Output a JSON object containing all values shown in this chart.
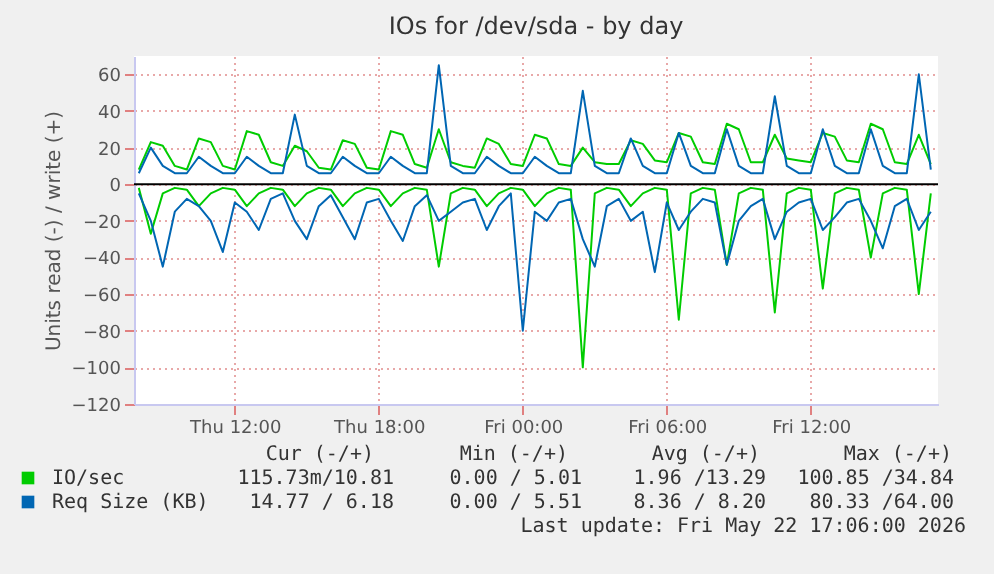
{
  "chart_data": {
    "type": "line",
    "title": "IOs for /dev/sda - by day",
    "ylabel": "Units read (-) / write (+)",
    "x": [
      "2026-05-21T08:00",
      "2026-05-21T08:30",
      "2026-05-21T09:00",
      "2026-05-21T09:30",
      "2026-05-21T10:00",
      "2026-05-21T10:30",
      "2026-05-21T11:00",
      "2026-05-21T11:30",
      "2026-05-21T12:00",
      "2026-05-21T12:30",
      "2026-05-21T13:00",
      "2026-05-21T13:30",
      "2026-05-21T14:00",
      "2026-05-21T14:30",
      "2026-05-21T15:00",
      "2026-05-21T15:30",
      "2026-05-21T16:00",
      "2026-05-21T16:30",
      "2026-05-21T17:00",
      "2026-05-21T17:30",
      "2026-05-21T18:00",
      "2026-05-21T18:30",
      "2026-05-21T19:00",
      "2026-05-21T19:30",
      "2026-05-21T20:00",
      "2026-05-21T20:30",
      "2026-05-21T21:00",
      "2026-05-21T21:30",
      "2026-05-21T22:00",
      "2026-05-21T22:30",
      "2026-05-21T23:00",
      "2026-05-21T23:30",
      "2026-05-22T00:00",
      "2026-05-22T00:30",
      "2026-05-22T01:00",
      "2026-05-22T01:30",
      "2026-05-22T02:00",
      "2026-05-22T02:30",
      "2026-05-22T03:00",
      "2026-05-22T03:30",
      "2026-05-22T04:00",
      "2026-05-22T04:30",
      "2026-05-22T05:00",
      "2026-05-22T05:30",
      "2026-05-22T06:00",
      "2026-05-22T06:30",
      "2026-05-22T07:00",
      "2026-05-22T07:30",
      "2026-05-22T08:00",
      "2026-05-22T08:30",
      "2026-05-22T09:00",
      "2026-05-22T09:30",
      "2026-05-22T10:00",
      "2026-05-22T10:30",
      "2026-05-22T11:00",
      "2026-05-22T11:30",
      "2026-05-22T12:00",
      "2026-05-22T12:30",
      "2026-05-22T13:00",
      "2026-05-22T13:30",
      "2026-05-22T14:00",
      "2026-05-22T14:30",
      "2026-05-22T15:00",
      "2026-05-22T15:30",
      "2026-05-22T16:00",
      "2026-05-22T16:30",
      "2026-05-22T17:00"
    ],
    "series": [
      {
        "name": "IO/sec",
        "color": "#00cc00",
        "values": [
          8,
          23,
          21,
          10,
          8,
          25,
          23,
          10,
          8,
          29,
          27,
          12,
          10,
          21,
          18,
          9,
          8,
          24,
          22,
          9,
          8,
          29,
          27,
          11,
          9,
          30,
          12,
          10,
          9,
          25,
          22,
          11,
          10,
          27,
          25,
          11,
          10,
          20,
          12,
          11,
          11,
          24,
          22,
          13,
          12,
          28,
          26,
          12,
          11,
          33,
          30,
          12,
          12,
          27,
          14,
          13,
          12,
          28,
          26,
          13,
          12,
          33,
          30,
          12,
          11,
          27,
          11
        ]
      },
      {
        "color": "#00cc00",
        "values": [
          -2,
          -27,
          -5,
          -2,
          -3,
          -12,
          -5,
          -2,
          -3,
          -12,
          -5,
          -2,
          -3,
          -12,
          -5,
          -2,
          -3,
          -12,
          -5,
          -2,
          -3,
          -12,
          -5,
          -2,
          -3,
          -45,
          -5,
          -2,
          -3,
          -12,
          -5,
          -2,
          -3,
          -12,
          -5,
          -2,
          -3,
          -100,
          -5,
          -2,
          -3,
          -12,
          -5,
          -2,
          -3,
          -74,
          -5,
          -2,
          -3,
          -44,
          -5,
          -2,
          -3,
          -70,
          -5,
          -2,
          -3,
          -57,
          -5,
          -2,
          -3,
          -40,
          -5,
          -2,
          -3,
          -60,
          -5
        ]
      },
      {
        "name": "Req Size (KB)",
        "color": "#0066b3",
        "values": [
          6,
          20,
          10,
          6,
          6,
          15,
          10,
          6,
          6,
          15,
          10,
          6,
          6,
          38,
          10,
          6,
          6,
          15,
          10,
          6,
          6,
          15,
          10,
          6,
          6,
          65,
          10,
          6,
          6,
          15,
          10,
          6,
          6,
          15,
          10,
          6,
          6,
          51,
          10,
          6,
          6,
          25,
          10,
          6,
          6,
          28,
          10,
          6,
          6,
          30,
          10,
          6,
          6,
          48,
          10,
          6,
          6,
          30,
          10,
          6,
          6,
          30,
          10,
          6,
          6,
          60,
          8
        ]
      },
      {
        "color": "#0066b3",
        "values": [
          -5,
          -20,
          -45,
          -15,
          -8,
          -12,
          -20,
          -37,
          -10,
          -15,
          -25,
          -8,
          -5,
          -20,
          -30,
          -12,
          -6,
          -18,
          -30,
          -10,
          -8,
          -20,
          -31,
          -12,
          -6,
          -20,
          -15,
          -10,
          -8,
          -25,
          -12,
          -5,
          -80,
          -15,
          -20,
          -10,
          -8,
          -30,
          -45,
          -12,
          -8,
          -20,
          -15,
          -48,
          -10,
          -25,
          -15,
          -8,
          -10,
          -44,
          -20,
          -12,
          -8,
          -30,
          -15,
          -10,
          -8,
          -25,
          -18,
          -10,
          -8,
          -20,
          -35,
          -12,
          -8,
          -25,
          -15
        ]
      }
    ],
    "xlim": [
      "2026-05-21T07:48",
      "2026-05-22T17:18"
    ],
    "xticks": [
      {
        "value": "2026-05-21T12:00",
        "label": "Thu 12:00"
      },
      {
        "value": "2026-05-21T18:00",
        "label": "Thu 18:00"
      },
      {
        "value": "2026-05-22T00:00",
        "label": "Fri 00:00"
      },
      {
        "value": "2026-05-22T06:00",
        "label": "Fri 06:00"
      },
      {
        "value": "2026-05-22T12:00",
        "label": "Fri 12:00"
      }
    ],
    "ylim": [
      -120,
      70
    ],
    "yticks": [
      -120,
      -100,
      -80,
      -60,
      -40,
      -20,
      0,
      20,
      40,
      60
    ],
    "grid": true,
    "legend": "bottom",
    "ref_lines": [
      {
        "axis": "y",
        "value": 0,
        "color": "#000000"
      }
    ],
    "annotations": [
      "Cur (-/+)",
      "Min (-/+)",
      "Avg (-/+)",
      "Max (-/+)",
      "115.73m/10.81",
      "0.00 / 5.01",
      "1.96 /13.29",
      "100.85 /34.84",
      "14.77 / 6.18",
      "0.00 / 5.51",
      "8.36 / 8.20",
      "80.33 /64.00",
      "Last update: Fri May 22 17:06:00 2026"
    ]
  }
}
